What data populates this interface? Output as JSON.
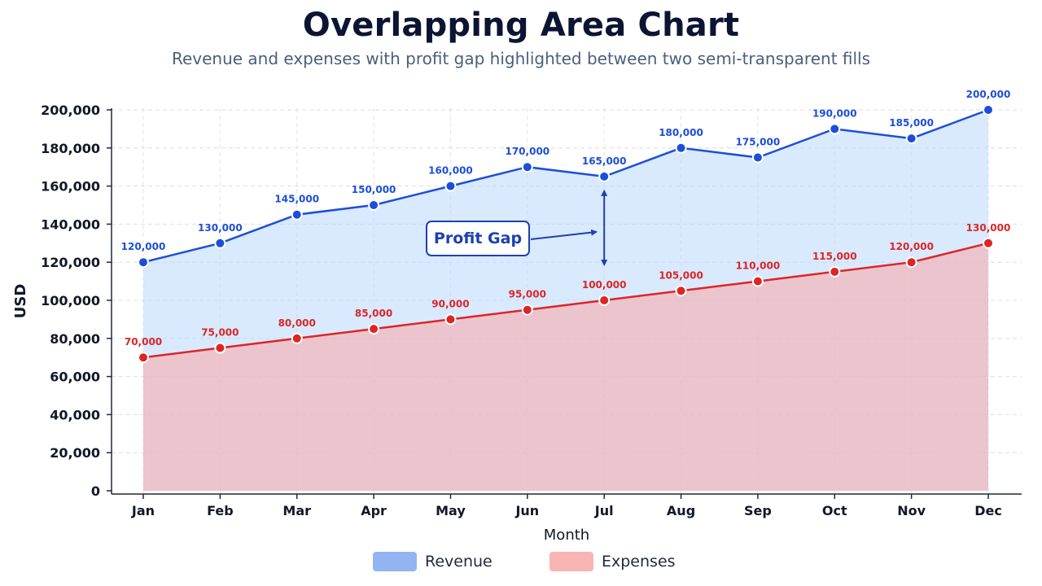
{
  "title": "Overlapping Area Chart",
  "subtitle": "Revenue and expenses with profit gap highlighted between two semi-transparent fills",
  "chart_data": {
    "type": "area",
    "title": "Overlapping Area Chart",
    "subtitle": "Revenue and expenses with profit gap highlighted between two semi-transparent fills",
    "xlabel": "Month",
    "ylabel": "USD",
    "categories": [
      "Jan",
      "Feb",
      "Mar",
      "Apr",
      "May",
      "Jun",
      "Jul",
      "Aug",
      "Sep",
      "Oct",
      "Nov",
      "Dec"
    ],
    "ylim": [
      0,
      200000
    ],
    "yticks": [
      0,
      20000,
      40000,
      60000,
      80000,
      100000,
      120000,
      140000,
      160000,
      180000,
      200000
    ],
    "ytick_labels": [
      "0",
      "20,000",
      "40,000",
      "60,000",
      "80,000",
      "100,000",
      "120,000",
      "140,000",
      "160,000",
      "180,000",
      "200,000"
    ],
    "grid": true,
    "legend_position": "bottom-center",
    "series": [
      {
        "name": "Revenue",
        "values": [
          120000,
          130000,
          145000,
          150000,
          160000,
          170000,
          165000,
          180000,
          175000,
          190000,
          185000,
          200000
        ],
        "labels": [
          "120,000",
          "130,000",
          "145,000",
          "150,000",
          "160,000",
          "170,000",
          "165,000",
          "180,000",
          "175,000",
          "190,000",
          "185,000",
          "200,000"
        ],
        "line_color": "#1d4ed8",
        "fill_color": "#bfdbfe",
        "legend_color": "#93b4f2"
      },
      {
        "name": "Expenses",
        "values": [
          70000,
          75000,
          80000,
          85000,
          90000,
          95000,
          100000,
          105000,
          110000,
          115000,
          120000,
          130000
        ],
        "labels": [
          "70,000",
          "75,000",
          "80,000",
          "85,000",
          "90,000",
          "95,000",
          "100,000",
          "105,000",
          "110,000",
          "115,000",
          "120,000",
          "130,000"
        ],
        "line_color": "#dc2626",
        "fill_color": "#fca5a5",
        "legend_color": "#f9b4b4"
      }
    ],
    "annotation": {
      "text": "Profit Gap",
      "category": "Jul",
      "color": "#1e40af"
    }
  }
}
